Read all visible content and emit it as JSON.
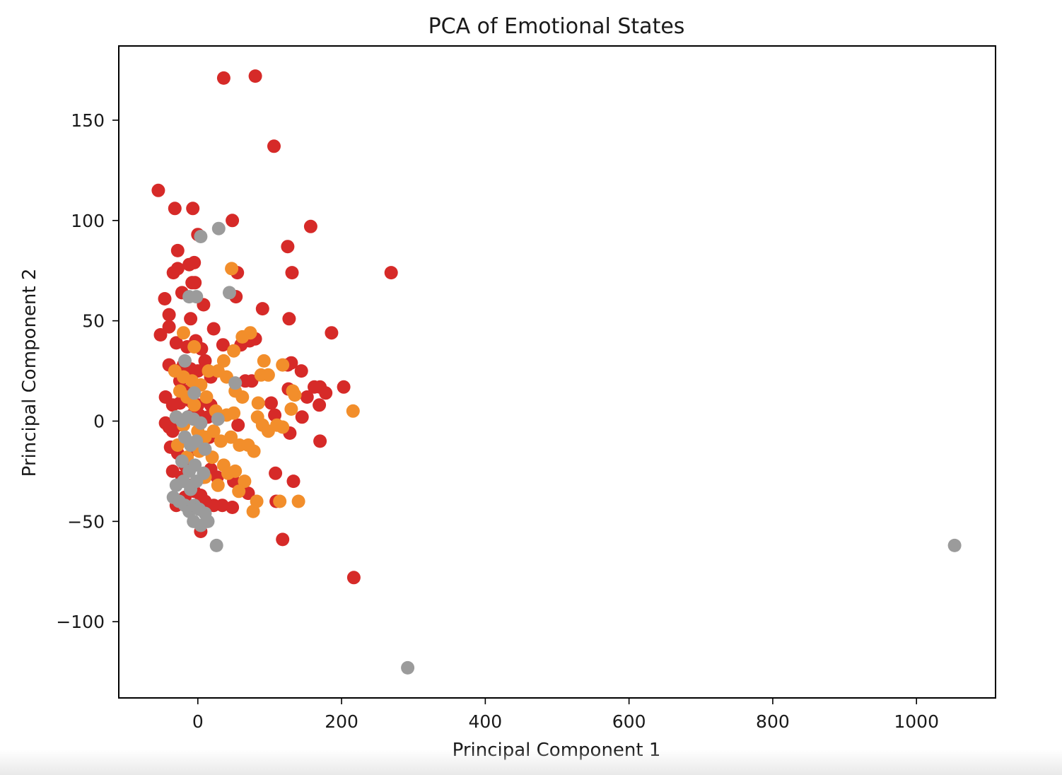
{
  "chart_data": {
    "type": "scatter",
    "title": "PCA of Emotional States",
    "xlabel": "Principal Component 1",
    "ylabel": "Principal Component 2",
    "xlim": [
      -110,
      1110
    ],
    "ylim": [
      -138,
      187
    ],
    "x_ticks": [
      0,
      200,
      400,
      600,
      800,
      1000
    ],
    "x_tick_labels": [
      "0",
      "200",
      "400",
      "600",
      "800",
      "1000"
    ],
    "y_ticks": [
      -100,
      -50,
      0,
      50,
      100,
      150
    ],
    "y_tick_labels": [
      "−100",
      "−50",
      "0",
      "50",
      "100",
      "150"
    ],
    "grid": false,
    "legend": "none",
    "series": [
      {
        "color": "#d62a28",
        "points": [
          [
            36,
            171
          ],
          [
            80,
            172
          ],
          [
            106,
            137
          ],
          [
            -55,
            115
          ],
          [
            -32,
            106
          ],
          [
            -7,
            106
          ],
          [
            48,
            100
          ],
          [
            157,
            97
          ],
          [
            0,
            93
          ],
          [
            125,
            87
          ],
          [
            -28,
            85
          ],
          [
            -34,
            74
          ],
          [
            -28,
            76
          ],
          [
            -12,
            78
          ],
          [
            -5,
            79
          ],
          [
            55,
            74
          ],
          [
            131,
            74
          ],
          [
            269,
            74
          ],
          [
            -46,
            61
          ],
          [
            -22,
            64
          ],
          [
            -8,
            69
          ],
          [
            -4,
            69
          ],
          [
            53,
            62
          ],
          [
            90,
            56
          ],
          [
            8,
            58
          ],
          [
            -40,
            53
          ],
          [
            -10,
            51
          ],
          [
            127,
            51
          ],
          [
            -40,
            47
          ],
          [
            -52,
            43
          ],
          [
            22,
            46
          ],
          [
            186,
            44
          ],
          [
            -30,
            39
          ],
          [
            -15,
            37
          ],
          [
            -3,
            40
          ],
          [
            5,
            36
          ],
          [
            35,
            38
          ],
          [
            60,
            38
          ],
          [
            72,
            40
          ],
          [
            80,
            41
          ],
          [
            -40,
            28
          ],
          [
            -30,
            25
          ],
          [
            -20,
            28
          ],
          [
            -10,
            26
          ],
          [
            0,
            25
          ],
          [
            10,
            30
          ],
          [
            18,
            22
          ],
          [
            125,
            28
          ],
          [
            130,
            29
          ],
          [
            144,
            25
          ],
          [
            -25,
            20
          ],
          [
            -15,
            15
          ],
          [
            -5,
            18
          ],
          [
            66,
            20
          ],
          [
            75,
            20
          ],
          [
            126,
            16
          ],
          [
            162,
            17
          ],
          [
            170,
            17
          ],
          [
            178,
            14
          ],
          [
            203,
            17
          ],
          [
            -45,
            12
          ],
          [
            -35,
            8
          ],
          [
            -25,
            9
          ],
          [
            -10,
            10
          ],
          [
            0,
            8
          ],
          [
            18,
            8
          ],
          [
            102,
            9
          ],
          [
            152,
            12
          ],
          [
            169,
            8
          ],
          [
            -45,
            -1
          ],
          [
            -40,
            -3
          ],
          [
            -35,
            -5
          ],
          [
            -28,
            -2
          ],
          [
            -20,
            0
          ],
          [
            -8,
            3
          ],
          [
            2,
            3
          ],
          [
            14,
            2
          ],
          [
            107,
            3
          ],
          [
            145,
            2
          ],
          [
            -38,
            -13
          ],
          [
            -28,
            -16
          ],
          [
            -18,
            -22
          ],
          [
            -6,
            -14
          ],
          [
            16,
            -8
          ],
          [
            56,
            -2
          ],
          [
            128,
            -6
          ],
          [
            -35,
            -25
          ],
          [
            -22,
            -28
          ],
          [
            -10,
            -32
          ],
          [
            8,
            -28
          ],
          [
            18,
            -24
          ],
          [
            27,
            -28
          ],
          [
            108,
            -26
          ],
          [
            170,
            -10
          ],
          [
            -30,
            -42
          ],
          [
            -18,
            -38
          ],
          [
            -5,
            -35
          ],
          [
            4,
            -37
          ],
          [
            10,
            -40
          ],
          [
            22,
            -42
          ],
          [
            34,
            -42
          ],
          [
            48,
            -43
          ],
          [
            50,
            -30
          ],
          [
            70,
            -36
          ],
          [
            109,
            -40
          ],
          [
            133,
            -30
          ],
          [
            4,
            -55
          ],
          [
            118,
            -59
          ],
          [
            217,
            -78
          ]
        ]
      },
      {
        "color": "#f28e2b",
        "points": [
          [
            47,
            76
          ],
          [
            -20,
            44
          ],
          [
            73,
            44
          ],
          [
            62,
            42
          ],
          [
            50,
            35
          ],
          [
            -5,
            37
          ],
          [
            36,
            30
          ],
          [
            -32,
            25
          ],
          [
            -20,
            22
          ],
          [
            -8,
            20
          ],
          [
            4,
            18
          ],
          [
            15,
            25
          ],
          [
            28,
            25
          ],
          [
            40,
            22
          ],
          [
            52,
            15
          ],
          [
            62,
            12
          ],
          [
            88,
            23
          ],
          [
            92,
            30
          ],
          [
            98,
            23
          ],
          [
            118,
            28
          ],
          [
            132,
            15
          ],
          [
            135,
            13
          ],
          [
            -25,
            15
          ],
          [
            -15,
            12
          ],
          [
            -5,
            8
          ],
          [
            12,
            12
          ],
          [
            25,
            5
          ],
          [
            40,
            3
          ],
          [
            50,
            4
          ],
          [
            84,
            9
          ],
          [
            130,
            6
          ],
          [
            216,
            5
          ],
          [
            -30,
            2
          ],
          [
            -20,
            -2
          ],
          [
            0,
            -5
          ],
          [
            10,
            -8
          ],
          [
            22,
            -5
          ],
          [
            32,
            -10
          ],
          [
            46,
            -8
          ],
          [
            58,
            -12
          ],
          [
            70,
            -12
          ],
          [
            83,
            2
          ],
          [
            90,
            -2
          ],
          [
            98,
            -5
          ],
          [
            110,
            -2
          ],
          [
            118,
            -3
          ],
          [
            -28,
            -12
          ],
          [
            -15,
            -18
          ],
          [
            2,
            -15
          ],
          [
            20,
            -18
          ],
          [
            36,
            -22
          ],
          [
            52,
            -25
          ],
          [
            65,
            -30
          ],
          [
            78,
            -15
          ],
          [
            10,
            -28
          ],
          [
            28,
            -32
          ],
          [
            42,
            -26
          ],
          [
            57,
            -35
          ],
          [
            77,
            -45
          ],
          [
            82,
            -40
          ],
          [
            114,
            -40
          ],
          [
            140,
            -40
          ]
        ]
      },
      {
        "color": "#9b9b9b",
        "points": [
          [
            29,
            96
          ],
          [
            4,
            92
          ],
          [
            -12,
            62
          ],
          [
            -2,
            62
          ],
          [
            44,
            64
          ],
          [
            -18,
            30
          ],
          [
            -5,
            14
          ],
          [
            52,
            19
          ],
          [
            -30,
            2
          ],
          [
            -22,
            0
          ],
          [
            -14,
            2
          ],
          [
            -6,
            1
          ],
          [
            4,
            -1
          ],
          [
            28,
            1
          ],
          [
            -18,
            -8
          ],
          [
            -10,
            -12
          ],
          [
            -2,
            -10
          ],
          [
            10,
            -14
          ],
          [
            -22,
            -20
          ],
          [
            -12,
            -25
          ],
          [
            -4,
            -22
          ],
          [
            8,
            -26
          ],
          [
            -30,
            -32
          ],
          [
            -20,
            -30
          ],
          [
            -10,
            -34
          ],
          [
            -2,
            -30
          ],
          [
            -34,
            -38
          ],
          [
            -26,
            -40
          ],
          [
            -18,
            -42
          ],
          [
            -12,
            -45
          ],
          [
            -5,
            -42
          ],
          [
            2,
            -44
          ],
          [
            10,
            -46
          ],
          [
            -6,
            -50
          ],
          [
            4,
            -52
          ],
          [
            14,
            -50
          ],
          [
            26,
            -62
          ],
          [
            292,
            -123
          ],
          [
            1053,
            -62
          ]
        ]
      }
    ]
  }
}
